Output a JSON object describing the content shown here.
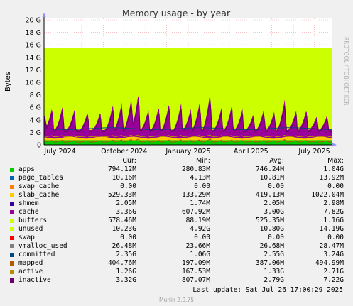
{
  "chart_data": {
    "type": "area",
    "title": "Memory usage - by year",
    "ylabel": "Bytes",
    "side_label": "RRDTOOL / TOBI OETIKER",
    "ylim": [
      0,
      20
    ],
    "y_unit": "G",
    "y_ticks": [
      "0",
      "2 G",
      "4 G",
      "6 G",
      "8 G",
      "10 G",
      "12 G",
      "14 G",
      "16 G",
      "18 G",
      "20 G"
    ],
    "x_ticks": [
      "July 2024",
      "October 2024",
      "January 2025",
      "April 2025",
      "July 2025"
    ],
    "x_tick_dates": [
      "2024-07-01",
      "2024-10-01",
      "2025-01-01",
      "2025-04-01",
      "2025-07-01"
    ],
    "x_range": [
      "2024-06-08",
      "2025-07-26"
    ],
    "grid": true,
    "legend_header": {
      "cur": "Cur:",
      "min": "Min:",
      "avg": "Avg:",
      "max": "Max:"
    },
    "series": [
      {
        "name": "apps",
        "color": "#00cc00",
        "cur": "794.12M",
        "min": "280.83M",
        "avg": "746.24M",
        "max": "1.04G"
      },
      {
        "name": "page_tables",
        "color": "#0066b3",
        "cur": "10.16M",
        "min": "4.13M",
        "avg": "10.81M",
        "max": "13.92M"
      },
      {
        "name": "swap_cache",
        "color": "#ff8000",
        "cur": "0.00",
        "min": "0.00",
        "avg": "0.00",
        "max": "0.00"
      },
      {
        "name": "slab_cache",
        "color": "#ffcc00",
        "cur": "529.33M",
        "min": "133.29M",
        "avg": "419.13M",
        "max": "1022.04M"
      },
      {
        "name": "shmem",
        "color": "#330099",
        "cur": "2.05M",
        "min": "1.74M",
        "avg": "2.05M",
        "max": "2.98M"
      },
      {
        "name": "cache",
        "color": "#990099",
        "cur": "3.36G",
        "min": "607.92M",
        "avg": "3.00G",
        "max": "7.82G"
      },
      {
        "name": "buffers",
        "color": "#ccff00",
        "cur": "578.46M",
        "min": "88.19M",
        "avg": "525.35M",
        "max": "1.16G"
      },
      {
        "name": "unused",
        "color": "#ccff00",
        "cur": "10.23G",
        "min": "4.92G",
        "avg": "10.80G",
        "max": "14.19G"
      },
      {
        "name": "swap",
        "color": "#ff0000",
        "cur": "0.00",
        "min": "0.00",
        "avg": "0.00",
        "max": "0.00"
      },
      {
        "name": "vmalloc_used",
        "color": "#808080",
        "cur": "26.48M",
        "min": "23.66M",
        "avg": "26.68M",
        "max": "28.47M"
      },
      {
        "name": "committed",
        "color": "#00487d",
        "cur": "2.35G",
        "min": "1.06G",
        "avg": "2.55G",
        "max": "3.24G"
      },
      {
        "name": "mapped",
        "color": "#b35a00",
        "cur": "404.76M",
        "min": "197.09M",
        "avg": "387.06M",
        "max": "494.99M"
      },
      {
        "name": "active",
        "color": "#b38f00",
        "cur": "1.26G",
        "min": "167.53M",
        "avg": "1.33G",
        "max": "2.71G"
      },
      {
        "name": "inactive",
        "color": "#6b006b",
        "cur": "3.32G",
        "min": "807.07M",
        "avg": "2.79G",
        "max": "7.22G"
      }
    ],
    "total_ram_gb": 15.5,
    "peaks": [
      {
        "date": "2024-06-10",
        "cache_top": 5.0
      },
      {
        "date": "2024-06-20",
        "cache_top": 6.2
      },
      {
        "date": "2024-07-05",
        "cache_top": 6.5
      },
      {
        "date": "2024-07-22",
        "cache_top": 5.8
      },
      {
        "date": "2024-08-10",
        "cache_top": 5.5
      },
      {
        "date": "2024-08-28",
        "cache_top": 5.4
      },
      {
        "date": "2024-09-15",
        "cache_top": 6.6
      },
      {
        "date": "2024-09-28",
        "cache_top": 7.1
      },
      {
        "date": "2024-10-12",
        "cache_top": 8.0
      },
      {
        "date": "2024-10-22",
        "cache_top": 8.7
      },
      {
        "date": "2024-11-05",
        "cache_top": 5.7
      },
      {
        "date": "2024-11-20",
        "cache_top": 6.3
      },
      {
        "date": "2024-12-05",
        "cache_top": 7.0
      },
      {
        "date": "2024-12-22",
        "cache_top": 6.8
      },
      {
        "date": "2025-01-05",
        "cache_top": 6.0
      },
      {
        "date": "2025-01-18",
        "cache_top": 7.2
      },
      {
        "date": "2025-02-02",
        "cache_top": 8.9
      },
      {
        "date": "2025-02-18",
        "cache_top": 6.1
      },
      {
        "date": "2025-03-05",
        "cache_top": 6.6
      },
      {
        "date": "2025-03-20",
        "cache_top": 5.8
      },
      {
        "date": "2025-04-05",
        "cache_top": 5.1
      },
      {
        "date": "2025-04-20",
        "cache_top": 5.9
      },
      {
        "date": "2025-05-05",
        "cache_top": 5.6
      },
      {
        "date": "2025-05-20",
        "cache_top": 7.6
      },
      {
        "date": "2025-06-05",
        "cache_top": 5.6
      },
      {
        "date": "2025-06-20",
        "cache_top": 5.8
      },
      {
        "date": "2025-07-05",
        "cache_top": 4.8
      },
      {
        "date": "2025-07-20",
        "cache_top": 5.0
      }
    ]
  },
  "footer": {
    "last_update": "Last update: Sat Jul 26 17:00:29 2025",
    "version": "Munin 2.0.75"
  }
}
